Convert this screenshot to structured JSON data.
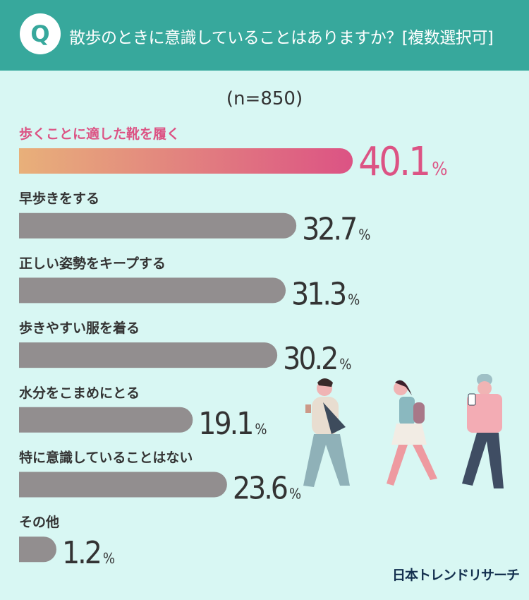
{
  "header": {
    "badge": "Q",
    "title": "散歩のときに意識していることはありますか？[複数選択可]"
  },
  "sample_size": "(n=850)",
  "colors": {
    "header": "#37a89c",
    "background": "#d8f7f3",
    "highlight_start": "#e8b07a",
    "highlight_end": "#dc5384",
    "highlight_text": "#dc5384",
    "bar": "#928e8f",
    "text": "#333333"
  },
  "chart_data": {
    "type": "bar",
    "orientation": "horizontal",
    "unit": "%",
    "categories": [
      "歩くことに適した靴を履く",
      "早歩きをする",
      "正しい姿勢をキープする",
      "歩きやすい服を着る",
      "水分をこまめにとる",
      "特に意識していることはない",
      "その他"
    ],
    "values": [
      40.1,
      32.7,
      31.3,
      30.2,
      19.1,
      23.6,
      1.2
    ],
    "highlight_index": 0,
    "grid": false,
    "legend": "none"
  },
  "logo": "日本トレンドリサーチ",
  "illustration": "three-walking-people"
}
